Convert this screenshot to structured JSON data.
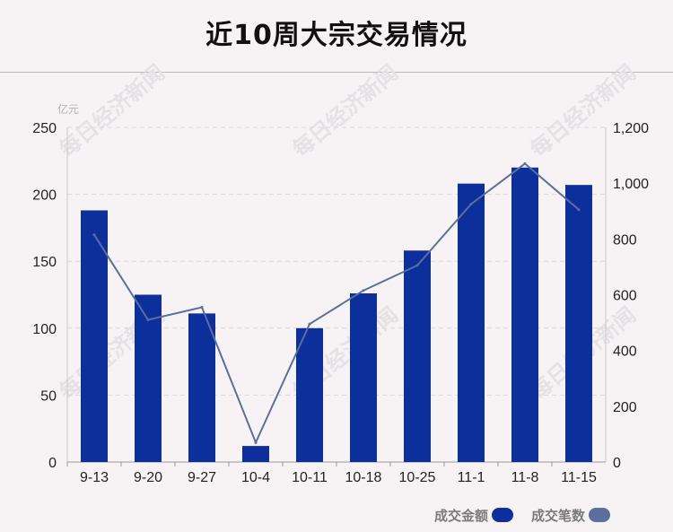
{
  "title": "近10周大宗交易情况",
  "watermark": "每日经济新闻",
  "chart_data": {
    "type": "bar",
    "title": "近10周大宗交易情况",
    "categories": [
      "9-13",
      "9-20",
      "9-27",
      "10-4",
      "10-11",
      "10-18",
      "10-25",
      "11-1",
      "11-8",
      "11-15"
    ],
    "y_left": {
      "unit": "亿元",
      "ylim": [
        0,
        250
      ],
      "ticks": [
        "0",
        "50",
        "100",
        "150",
        "200",
        "250"
      ]
    },
    "y_right": {
      "ylim": [
        0,
        1200
      ],
      "ticks": [
        "0",
        "200",
        "400",
        "600",
        "800",
        "1,000",
        "1,200"
      ]
    },
    "series": [
      {
        "name": "成交金额",
        "type": "bar",
        "axis": "left",
        "color": "#0c2f9c",
        "values": [
          188,
          125,
          111,
          12,
          100,
          126,
          158,
          208,
          220,
          207
        ]
      },
      {
        "name": "成交笔数",
        "type": "line",
        "axis": "right",
        "color": "#5b6f9e",
        "values": [
          815,
          510,
          555,
          70,
          495,
          615,
          705,
          925,
          1070,
          905
        ]
      }
    ],
    "grid": true,
    "legend_position": "bottom-right"
  }
}
